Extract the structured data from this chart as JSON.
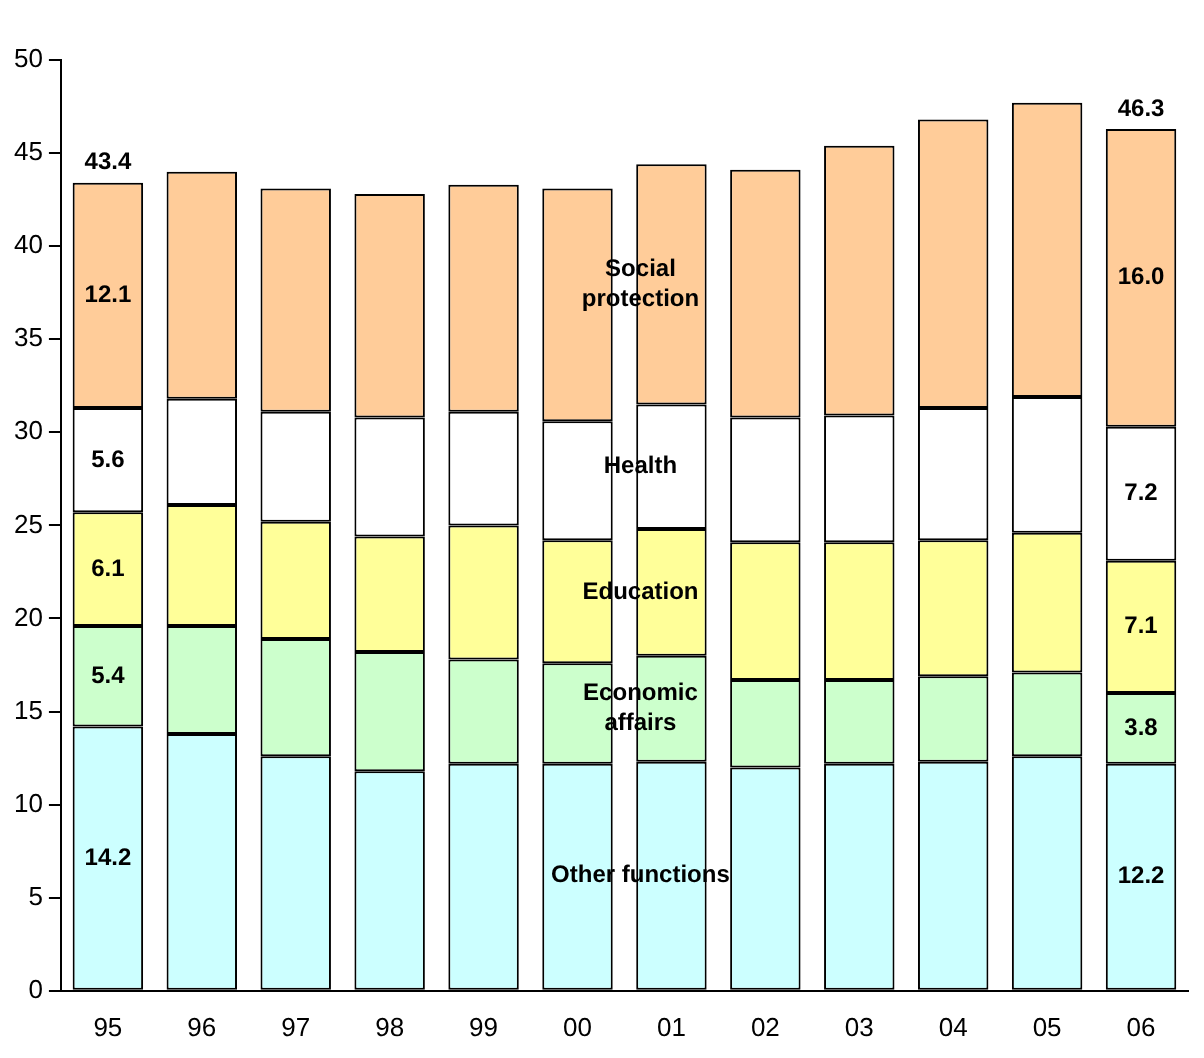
{
  "chart_data": {
    "type": "bar",
    "stacked": true,
    "categories": [
      "95",
      "96",
      "97",
      "98",
      "99",
      "00",
      "01",
      "02",
      "03",
      "04",
      "05",
      "06"
    ],
    "series": [
      {
        "name": "Other functions",
        "color": "#ccffff",
        "values": [
          14.2,
          13.8,
          12.6,
          11.8,
          12.2,
          12.2,
          12.3,
          12.0,
          12.2,
          12.3,
          12.6,
          12.2
        ],
        "value_labels": [
          "14.2",
          null,
          null,
          null,
          null,
          null,
          null,
          null,
          null,
          null,
          null,
          "12.2"
        ]
      },
      {
        "name": "Economic affairs",
        "color": "#ccffcc",
        "values": [
          5.4,
          5.8,
          6.3,
          6.4,
          5.6,
          5.4,
          5.7,
          4.7,
          4.5,
          4.6,
          4.5,
          3.8
        ],
        "value_labels": [
          "5.4",
          null,
          null,
          null,
          null,
          null,
          null,
          null,
          null,
          null,
          null,
          "3.8"
        ]
      },
      {
        "name": "Education",
        "color": "#ffff99",
        "values": [
          6.1,
          6.5,
          6.3,
          6.2,
          7.2,
          6.6,
          6.8,
          7.4,
          7.4,
          7.3,
          7.5,
          7.1
        ],
        "value_labels": [
          "6.1",
          null,
          null,
          null,
          null,
          null,
          null,
          null,
          null,
          null,
          null,
          "7.1"
        ]
      },
      {
        "name": "Health",
        "color": "#ffffff",
        "values": [
          5.6,
          5.7,
          5.9,
          6.4,
          6.1,
          6.4,
          6.7,
          6.7,
          6.8,
          7.1,
          7.3,
          7.2
        ],
        "value_labels": [
          "5.6",
          null,
          null,
          null,
          null,
          null,
          null,
          null,
          null,
          null,
          null,
          "7.2"
        ]
      },
      {
        "name": "Social protection",
        "color": "#ffcc99",
        "values": [
          12.1,
          12.2,
          12.0,
          12.0,
          12.2,
          12.5,
          12.9,
          13.3,
          14.5,
          15.5,
          15.8,
          16.0
        ],
        "value_labels": [
          "12.1",
          null,
          null,
          null,
          null,
          null,
          null,
          null,
          null,
          null,
          null,
          "16.0"
        ]
      }
    ],
    "totals": [
      "43.4",
      null,
      null,
      null,
      null,
      null,
      null,
      null,
      null,
      null,
      null,
      "46.3"
    ],
    "ylim": [
      0,
      50
    ],
    "yticks": [
      0,
      5,
      10,
      15,
      20,
      25,
      30,
      35,
      40,
      45,
      50
    ],
    "grid": false,
    "legend": false
  }
}
